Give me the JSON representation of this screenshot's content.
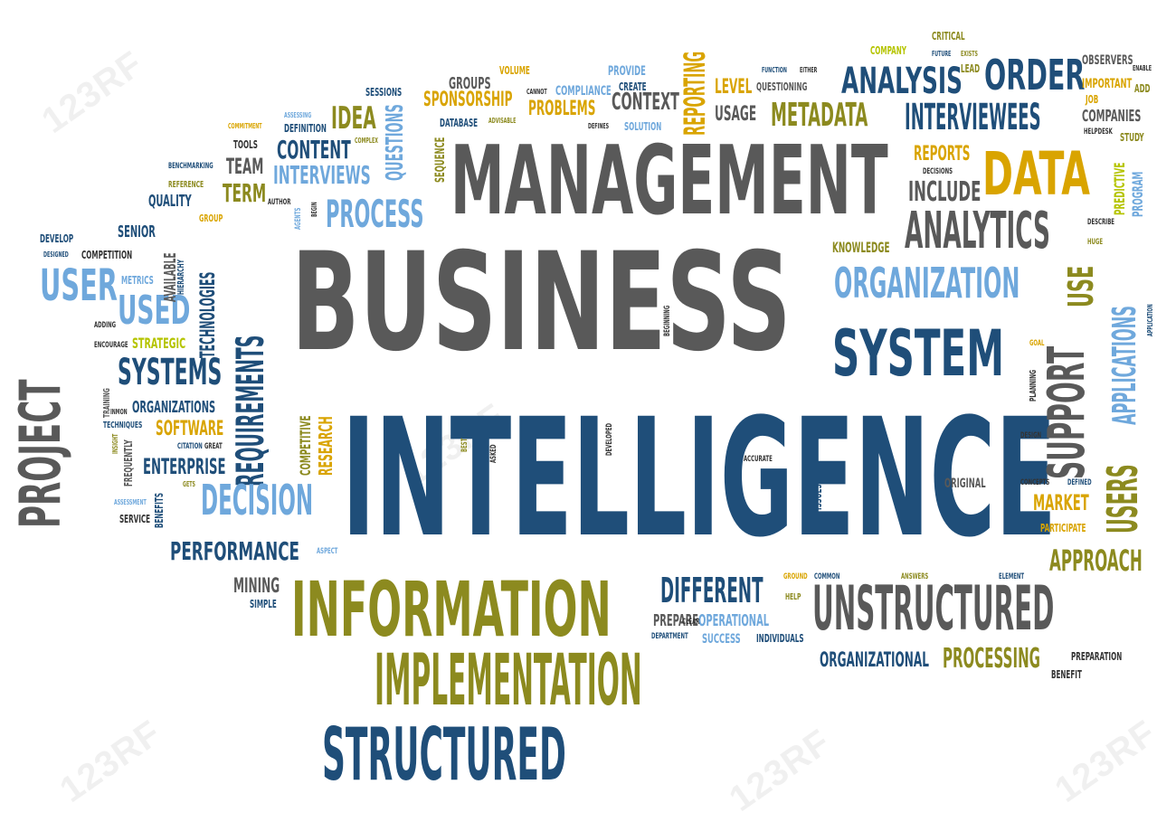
{
  "colors": {
    "gray": "#595959",
    "navy": "#1f4e79",
    "olive": "#8c8a1f",
    "gold": "#d9a400",
    "sky": "#6fa8dc",
    "lime": "#b5c400",
    "dark": "#333333"
  },
  "watermark": "123RF",
  "words": {
    "business": "BUSINESS",
    "intelligence": "INTELLIGENCE",
    "management": "MANAGEMENT",
    "information": "INFORMATION",
    "implementation": "IMPLEMENTATION",
    "structured": "STRUCTURED",
    "unstructured": "UNSTRUCTURED",
    "project": "PROJECT",
    "requirements": "REQUIREMENTS",
    "system": "SYSTEM",
    "systems": "SYSTEMS",
    "organization": "ORGANIZATION",
    "analytics": "ANALYTICS",
    "data": "DATA",
    "analysis": "ANALYSIS",
    "order": "ORDER",
    "interviewees": "INTERVIEWEES",
    "metadata": "METADATA",
    "process": "PROCESS",
    "decision": "DECISION",
    "performance": "PERFORMANCE",
    "user": "USER",
    "used": "USED",
    "users": "USERS",
    "support": "SUPPORT",
    "applications": "APPLICATIONS",
    "use": "USE",
    "approach": "APPROACH",
    "processing": "PROCESSING",
    "organizational": "ORGANIZATIONAL",
    "different": "DIFFERENT",
    "operational": "OPERATIONAL",
    "market": "MARKET",
    "interviews": "INTERVIEWS",
    "content": "CONTENT",
    "idea": "IDEA",
    "questions": "QUESTIONS",
    "reporting": "REPORTING",
    "problems": "PROBLEMS",
    "sponsorship": "SPONSORSHIP",
    "context": "CONTEXT",
    "usage": "USAGE",
    "level": "LEVEL",
    "include": "INCLUDE",
    "reports": "REPORTS",
    "knowledge": "KNOWLEDGE",
    "technologies": "TECHNOLOGIES",
    "available": "AVAILABLE",
    "term": "TERM",
    "team": "TEAM",
    "quality": "QUALITY",
    "senior": "SENIOR",
    "software": "SOFTWARE",
    "enterprise": "ENTERPRISE",
    "organizations": "ORGANIZATIONS",
    "strategic": "STRATEGIC",
    "competitive": "COMPETITIVE",
    "research": "RESEARCH",
    "mining": "MINING",
    "simple": "SIMPLE",
    "prepare": "PREPARE",
    "success": "SUCCESS",
    "individuals": "INDIVIDUALS",
    "original": "ORIGINAL",
    "issues": "ISSUES",
    "companies": "COMPANIES",
    "study": "STUDY",
    "program": "PROGRAM",
    "predictive": "PREDICTIVE",
    "important": "IMPORTANT",
    "observers": "OBSERVERS",
    "add": "ADD",
    "job": "JOB",
    "company": "COMPANY",
    "critical": "CRITICAL",
    "lead": "LEAD",
    "groups": "GROUPS",
    "volume": "VOLUME",
    "sessions": "SESSIONS",
    "compliance": "COMPLIANCE",
    "provide": "PROVIDE",
    "create": "CREATE",
    "questioning": "QUESTIONING",
    "solution": "SOLUTION",
    "database": "DATABASE",
    "sequence": "SEQUENCE",
    "definition": "DEFINITION",
    "tools": "TOOLS",
    "benchmarking": "BENCHMARKING",
    "reference": "REFERENCE",
    "develop": "DEVELOP",
    "competition": "COMPETITION",
    "metrics": "METRICS",
    "hierarchy": "HIERARCHY",
    "training": "TRAINING",
    "techniques": "TECHNIQUES",
    "frequently": "FREQUENTLY",
    "benefits": "BENEFITS",
    "service": "SERVICE",
    "citation": "CITATION",
    "great": "GREAT",
    "preparation": "PREPARATION",
    "benefit": "BENEFIT",
    "participate": "PARTICIPATE",
    "concepts": "CONCEPTS",
    "planning": "PLANNING",
    "describe": "DESCRIBE",
    "huge": "HUGE",
    "decisions": "DECISIONS",
    "help": "HELP",
    "ground": "GROUND",
    "clear": "CLEAR",
    "common": "COMMON",
    "answers": "ANSWERS",
    "element": "ELEMENT",
    "accurate": "ACCURATE",
    "aspect": "ASPECT",
    "agents": "AGENTS",
    "author": "AUTHOR",
    "group": "GROUP",
    "adding": "ADDING",
    "encourage": "ENCOURAGE",
    "beginning": "BEGINNING",
    "developed": "DEVELOPED",
    "asked": "ASKED",
    "best": "BEST",
    "department": "DEPARTMENT",
    "application": "APPLICATION",
    "helpdesk": "HELPDESK",
    "design": "DESIGN",
    "defined": "DEFINED",
    "goal": "GOAL",
    "commitment": "COMMITMENT",
    "assessing": "ASSESSING",
    "designed": "DESIGNED",
    "insight": "INSIGHT",
    "inmon": "INMON",
    "assessment": "ASSESSMENT",
    "gets": "GETS",
    "complex": "COMPLEX",
    "begin": "BEGIN",
    "advisable": "ADVISABLE",
    "cannot": "CANNOT",
    "defines": "DEFINES",
    "function": "FUNCTION",
    "either": "EITHER",
    "future": "FUTURE",
    "exists": "EXISTS",
    "enable": "ENABLE"
  }
}
